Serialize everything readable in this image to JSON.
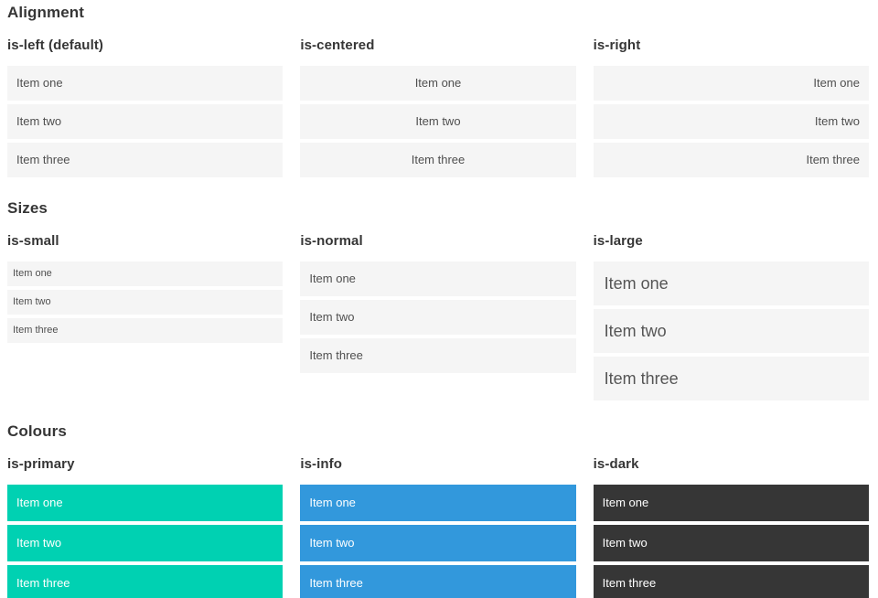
{
  "sections": [
    {
      "title": "Alignment",
      "groups": [
        {
          "heading": "is-left (default)",
          "items": [
            "Item one",
            "Item two",
            "Item three"
          ]
        },
        {
          "heading": "is-centered",
          "items": [
            "Item one",
            "Item two",
            "Item three"
          ]
        },
        {
          "heading": "is-right",
          "items": [
            "Item one",
            "Item two",
            "Item three"
          ]
        }
      ]
    },
    {
      "title": "Sizes",
      "groups": [
        {
          "heading": "is-small",
          "items": [
            "Item one",
            "Item two",
            "Item three"
          ]
        },
        {
          "heading": "is-normal",
          "items": [
            "Item one",
            "Item two",
            "Item three"
          ]
        },
        {
          "heading": "is-large",
          "items": [
            "Item one",
            "Item two",
            "Item three"
          ]
        }
      ]
    },
    {
      "title": "Colours",
      "groups": [
        {
          "heading": "is-primary",
          "items": [
            "Item one",
            "Item two",
            "Item three"
          ]
        },
        {
          "heading": "is-info",
          "items": [
            "Item one",
            "Item two",
            "Item three"
          ]
        },
        {
          "heading": "is-dark",
          "items": [
            "Item one",
            "Item two",
            "Item three"
          ]
        }
      ]
    }
  ],
  "colors": {
    "primary": "#00d1b2",
    "info": "#3298dc",
    "dark": "#363636",
    "item_background": "#f5f5f5",
    "item_text": "#4f4f4f",
    "heading_text": "#363636",
    "colored_item_text": "#ffffff",
    "page_background": "#ffffff"
  }
}
